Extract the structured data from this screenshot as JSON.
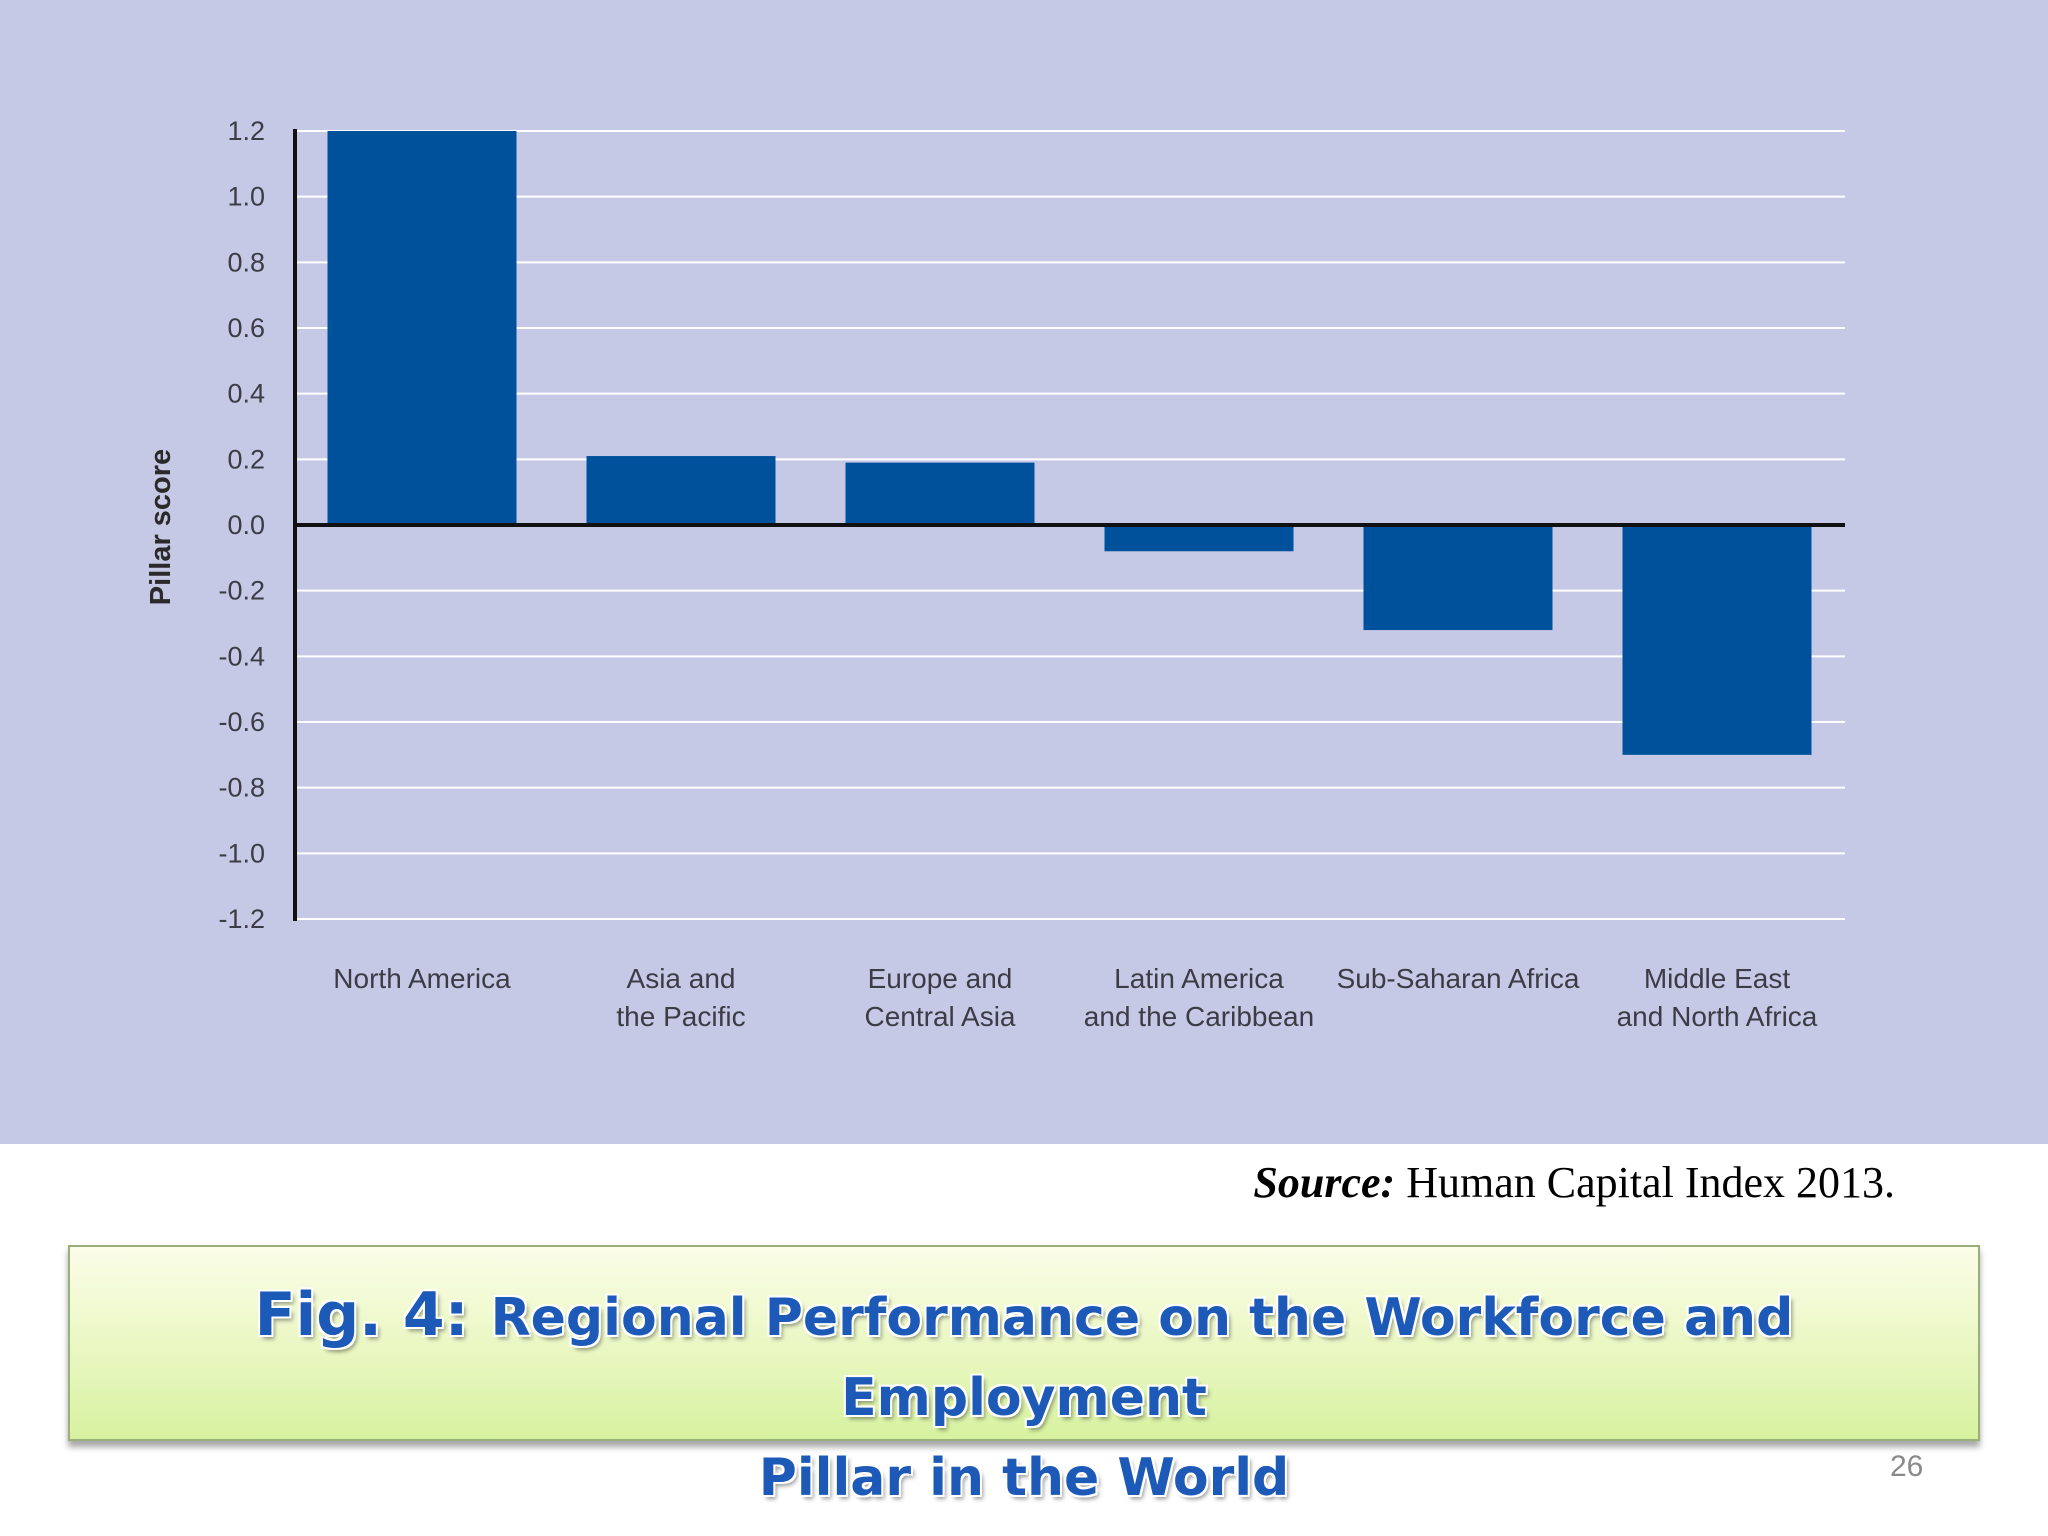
{
  "chart_data": {
    "type": "bar",
    "title": "",
    "xlabel": "",
    "ylabel": "Pillar score",
    "ylim": [
      -1.2,
      1.2
    ],
    "yticks": [
      "1.2",
      "1.0",
      "0.8",
      "0.6",
      "0.4",
      "0.2",
      "0.0",
      "-0.2",
      "-0.4",
      "-0.6",
      "-0.8",
      "-1.0",
      "-1.2"
    ],
    "grid": true,
    "bar_color": "#00519b",
    "categories": [
      [
        "North America"
      ],
      [
        "Asia and",
        "the Pacific"
      ],
      [
        "Europe and",
        "Central Asia"
      ],
      [
        "Latin America",
        "and the Caribbean"
      ],
      [
        "Sub-Saharan Africa"
      ],
      [
        "Middle East",
        "and North Africa"
      ]
    ],
    "values": [
      1.2,
      0.21,
      0.19,
      -0.08,
      -0.32,
      -0.7
    ]
  },
  "source": {
    "label": "Source:",
    "text": " Human Capital Index 2013."
  },
  "caption": {
    "fig_label": "Fig. 4:",
    "line1": "Regional Performance on the Workforce and Employment",
    "line2": "Pillar in the World"
  },
  "page_number": "26"
}
